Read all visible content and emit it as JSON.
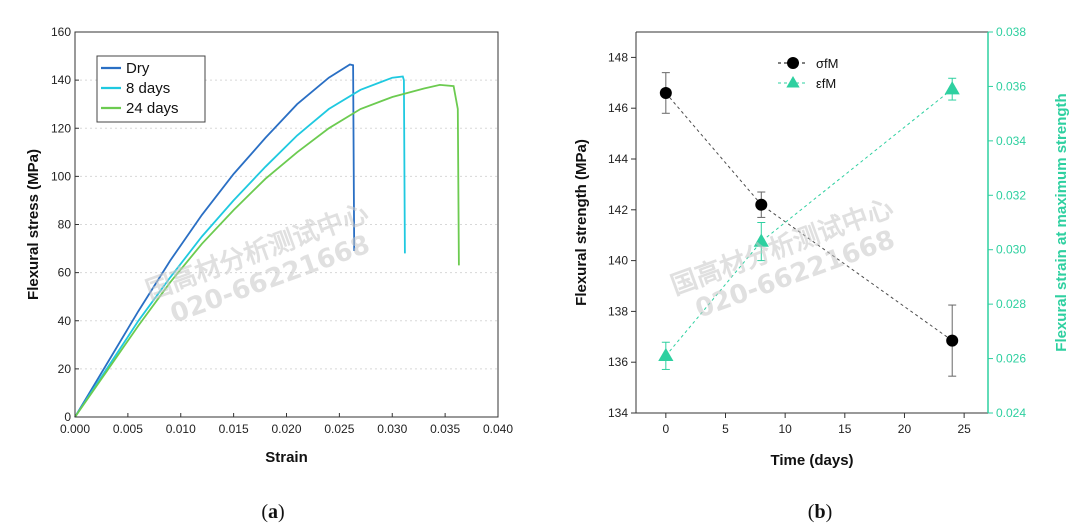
{
  "chart_data": [
    {
      "type": "line",
      "panel_label": "a",
      "xlabel": "Strain",
      "ylabel": "Flexural stress (MPa)",
      "xlim": [
        0.0,
        0.04
      ],
      "ylim": [
        0,
        160
      ],
      "x_ticks": [
        "0.000",
        "0.005",
        "0.010",
        "0.015",
        "0.020",
        "0.025",
        "0.030",
        "0.035",
        "0.040"
      ],
      "y_ticks": [
        "0",
        "20",
        "40",
        "60",
        "80",
        "100",
        "120",
        "140",
        "160"
      ],
      "grid": true,
      "legend": "top-left",
      "series": [
        {
          "name": "Dry",
          "color": "#2a6fc4",
          "points": [
            [
              0.0,
              0
            ],
            [
              0.003,
              22
            ],
            [
              0.006,
              44
            ],
            [
              0.009,
              65
            ],
            [
              0.012,
              84
            ],
            [
              0.015,
              101
            ],
            [
              0.018,
              116
            ],
            [
              0.021,
              130
            ],
            [
              0.024,
              141
            ],
            [
              0.026,
              146.5
            ],
            [
              0.0263,
              146.2
            ],
            [
              0.0264,
              69
            ]
          ]
        },
        {
          "name": "8 days",
          "color": "#1fc9e0",
          "points": [
            [
              0.0,
              0
            ],
            [
              0.003,
              20
            ],
            [
              0.006,
              40
            ],
            [
              0.009,
              58
            ],
            [
              0.012,
              75
            ],
            [
              0.015,
              90
            ],
            [
              0.018,
              104
            ],
            [
              0.021,
              117
            ],
            [
              0.024,
              128
            ],
            [
              0.027,
              136
            ],
            [
              0.03,
              141
            ],
            [
              0.031,
              141.5
            ],
            [
              0.0311,
              140
            ],
            [
              0.0312,
              68
            ]
          ]
        },
        {
          "name": "24 days",
          "color": "#6ccb50",
          "points": [
            [
              0.0,
              0
            ],
            [
              0.003,
              19
            ],
            [
              0.006,
              38
            ],
            [
              0.009,
              56
            ],
            [
              0.012,
              72
            ],
            [
              0.015,
              86
            ],
            [
              0.018,
              99
            ],
            [
              0.021,
              110
            ],
            [
              0.024,
              120
            ],
            [
              0.027,
              128
            ],
            [
              0.03,
              133
            ],
            [
              0.033,
              136.5
            ],
            [
              0.0345,
              138
            ],
            [
              0.0358,
              137.5
            ],
            [
              0.0362,
              128
            ],
            [
              0.0363,
              63
            ]
          ]
        }
      ]
    },
    {
      "type": "scatter",
      "panel_label": "b",
      "xlabel": "Time (days)",
      "ylabel": "Flexural strength (MPa)",
      "y2label": "Flexural strain at maximum strength",
      "xlim": [
        -2.5,
        27
      ],
      "ylim": [
        134,
        149
      ],
      "y2lim": [
        0.024,
        0.038
      ],
      "x_ticks": [
        "0",
        "5",
        "10",
        "15",
        "20",
        "25"
      ],
      "y_ticks": [
        "134",
        "136",
        "138",
        "140",
        "142",
        "144",
        "146",
        "148"
      ],
      "y2_ticks": [
        "0.024",
        "0.026",
        "0.028",
        "0.030",
        "0.032",
        "0.034",
        "0.036",
        "0.038"
      ],
      "grid": false,
      "legend": "top-center",
      "series": [
        {
          "name": "σfM",
          "axis": "left",
          "color": "#000000",
          "marker": "circle",
          "x": [
            0,
            8,
            24
          ],
          "y": [
            146.6,
            142.2,
            136.85
          ],
          "err": [
            0.8,
            0.5,
            1.4
          ]
        },
        {
          "name": "εfM",
          "axis": "right",
          "color": "#2ed0a0",
          "marker": "triangle",
          "x": [
            0,
            8,
            24
          ],
          "y": [
            0.0261,
            0.0303,
            0.0359
          ],
          "err": [
            0.0005,
            0.0007,
            0.0004
          ]
        }
      ]
    }
  ],
  "watermark": {
    "line1": "国高材分析测试中心",
    "line2": "020-66221668"
  }
}
